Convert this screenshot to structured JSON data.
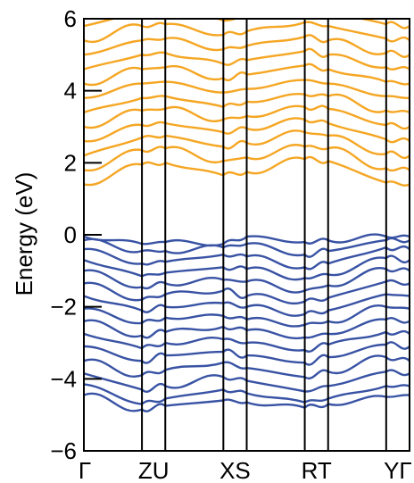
{
  "chart_data": {
    "type": "line",
    "title": "",
    "xlabel": "",
    "ylabel": "Energy (eV)",
    "ylim": [
      -6,
      6
    ],
    "yticks": [
      -6,
      -4,
      -2,
      0,
      2,
      4,
      6
    ],
    "grid": false,
    "k_path": [
      {
        "label": "Γ",
        "k": 0.0
      },
      {
        "label": "Z",
        "k": 0.97
      },
      {
        "label": "U",
        "k": 1.36
      },
      {
        "label": "X",
        "k": 2.33
      },
      {
        "label": "S",
        "k": 2.72
      },
      {
        "label": "R",
        "k": 3.69
      },
      {
        "label": "T",
        "k": 4.08
      },
      {
        "label": "Y",
        "k": 5.05
      },
      {
        "label": "Γ",
        "k": 5.44
      }
    ],
    "tick_labels_text": [
      "Γ",
      "ZU",
      "XS",
      "RT",
      "YΓ"
    ],
    "series": [
      {
        "band": "valence",
        "color": "#3953a4",
        "nodes": [
          -0.05,
          -0.25,
          -0.2,
          -0.25,
          -0.05,
          -0.2,
          -0.15,
          -0.05,
          -0.05
        ]
      },
      {
        "band": "valence",
        "color": "#3953a4",
        "nodes": [
          -0.15,
          -0.45,
          -0.45,
          -0.35,
          -0.25,
          -0.55,
          -0.45,
          -0.15,
          -0.15
        ]
      },
      {
        "band": "valence",
        "color": "#3953a4",
        "nodes": [
          -0.4,
          -0.8,
          -0.75,
          -0.55,
          -0.6,
          -0.9,
          -0.8,
          -0.35,
          -0.4
        ]
      },
      {
        "band": "valence",
        "color": "#3953a4",
        "nodes": [
          -0.7,
          -1.15,
          -1.05,
          -0.9,
          -0.95,
          -1.2,
          -1.1,
          -0.65,
          -0.7
        ]
      },
      {
        "band": "valence",
        "color": "#3953a4",
        "nodes": [
          -1.0,
          -1.45,
          -1.35,
          -1.25,
          -1.3,
          -1.55,
          -1.4,
          -0.95,
          -1.0
        ]
      },
      {
        "band": "valence",
        "color": "#3953a4",
        "nodes": [
          -1.35,
          -1.8,
          -1.65,
          -1.55,
          -1.7,
          -1.85,
          -1.75,
          -1.3,
          -1.35
        ]
      },
      {
        "band": "valence",
        "color": "#3953a4",
        "nodes": [
          -1.7,
          -2.1,
          -2.0,
          -1.9,
          -2.0,
          -2.2,
          -2.1,
          -1.65,
          -1.7
        ]
      },
      {
        "band": "valence",
        "color": "#3953a4",
        "nodes": [
          -2.05,
          -2.45,
          -2.3,
          -2.25,
          -2.35,
          -2.5,
          -2.4,
          -2.0,
          -2.05
        ]
      },
      {
        "band": "valence",
        "color": "#3953a4",
        "nodes": [
          -2.4,
          -2.8,
          -2.7,
          -2.55,
          -2.65,
          -2.85,
          -2.75,
          -2.35,
          -2.4
        ]
      },
      {
        "band": "valence",
        "color": "#3953a4",
        "nodes": [
          -2.75,
          -3.15,
          -3.0,
          -2.9,
          -3.0,
          -3.2,
          -3.05,
          -2.7,
          -2.75
        ]
      },
      {
        "band": "valence",
        "color": "#3953a4",
        "nodes": [
          -3.1,
          -3.5,
          -3.35,
          -3.25,
          -3.35,
          -3.55,
          -3.4,
          -3.05,
          -3.1
        ]
      },
      {
        "band": "valence",
        "color": "#3953a4",
        "nodes": [
          -3.5,
          -3.9,
          -3.75,
          -3.55,
          -3.7,
          -3.95,
          -3.8,
          -3.4,
          -3.5
        ]
      },
      {
        "band": "valence",
        "color": "#3953a4",
        "nodes": [
          -3.85,
          -4.3,
          -4.2,
          -3.95,
          -4.05,
          -4.35,
          -4.2,
          -3.8,
          -3.85
        ]
      },
      {
        "band": "valence",
        "color": "#3953a4",
        "nodes": [
          -4.15,
          -4.7,
          -4.55,
          -4.3,
          -4.4,
          -4.65,
          -4.55,
          -4.2,
          -4.2
        ]
      },
      {
        "band": "valence",
        "color": "#3953a4",
        "nodes": [
          -4.45,
          -4.85,
          -4.75,
          -4.6,
          -4.65,
          -4.8,
          -4.7,
          -4.5,
          -4.45
        ]
      },
      {
        "band": "conduction",
        "color": "#f5a623",
        "nodes": [
          1.4,
          1.95,
          2.0,
          1.65,
          1.75,
          2.1,
          2.05,
          1.45,
          1.4
        ]
      },
      {
        "band": "conduction",
        "color": "#f5a623",
        "nodes": [
          1.8,
          2.35,
          2.4,
          2.05,
          2.15,
          2.45,
          2.4,
          1.85,
          1.8
        ]
      },
      {
        "band": "conduction",
        "color": "#f5a623",
        "nodes": [
          2.2,
          2.7,
          2.75,
          2.45,
          2.55,
          2.85,
          2.75,
          2.25,
          2.2
        ]
      },
      {
        "band": "conduction",
        "color": "#f5a623",
        "nodes": [
          2.6,
          3.05,
          3.1,
          2.85,
          2.95,
          3.2,
          3.1,
          2.65,
          2.6
        ]
      },
      {
        "band": "conduction",
        "color": "#f5a623",
        "nodes": [
          3.0,
          3.45,
          3.5,
          3.2,
          3.3,
          3.55,
          3.5,
          3.05,
          3.0
        ]
      },
      {
        "band": "conduction",
        "color": "#f5a623",
        "nodes": [
          3.4,
          3.8,
          3.85,
          3.55,
          3.7,
          3.9,
          3.85,
          3.45,
          3.4
        ]
      },
      {
        "band": "conduction",
        "color": "#f5a623",
        "nodes": [
          3.8,
          4.2,
          4.25,
          3.95,
          4.05,
          4.3,
          4.2,
          3.85,
          3.8
        ]
      },
      {
        "band": "conduction",
        "color": "#f5a623",
        "nodes": [
          4.2,
          4.6,
          4.65,
          4.35,
          4.45,
          4.7,
          4.6,
          4.25,
          4.2
        ]
      },
      {
        "band": "conduction",
        "color": "#f5a623",
        "nodes": [
          4.6,
          5.0,
          5.05,
          4.75,
          4.85,
          5.1,
          5.0,
          4.65,
          4.6
        ]
      },
      {
        "band": "conduction",
        "color": "#f5a623",
        "nodes": [
          5.0,
          5.4,
          5.45,
          5.15,
          5.25,
          5.5,
          5.4,
          5.05,
          5.0
        ]
      },
      {
        "band": "conduction",
        "color": "#f5a623",
        "nodes": [
          5.4,
          5.8,
          5.85,
          5.55,
          5.65,
          5.9,
          5.8,
          5.45,
          5.4
        ]
      },
      {
        "band": "conduction",
        "color": "#f5a623",
        "nodes": [
          5.8,
          6.2,
          6.25,
          5.95,
          6.05,
          6.3,
          6.2,
          5.85,
          5.8
        ]
      }
    ]
  }
}
